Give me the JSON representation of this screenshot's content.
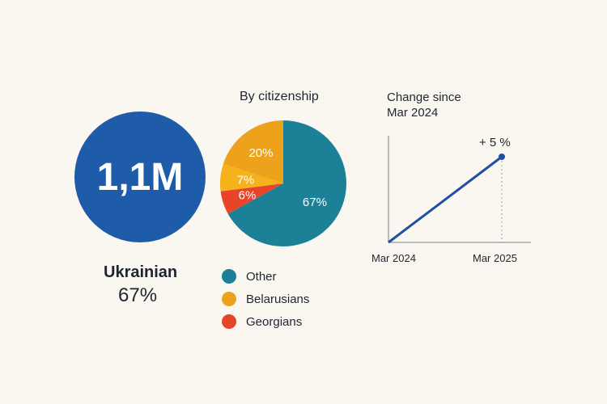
{
  "headline": {
    "value": "1,1M",
    "label": "Ukrainian",
    "share": "67%",
    "color": "#1e5ba8"
  },
  "pie_section": {
    "title": "By citizenship"
  },
  "change_section": {
    "title_line1": "Change since",
    "title_line2": "Mar 2024",
    "change_label": "+ 5 %",
    "x_start": "Mar 2024",
    "x_end": "Mar 2025"
  },
  "legend": [
    {
      "label": "Other",
      "color": "#1c8197"
    },
    {
      "label": "Belarusians",
      "color": "#eea21b"
    },
    {
      "label": "Georgians",
      "color": "#e8442a"
    }
  ],
  "chart_data": [
    {
      "type": "pie",
      "title": "By citizenship",
      "slices": [
        {
          "label": "67%",
          "value": 67,
          "color": "#1c8197"
        },
        {
          "label": "6%",
          "value": 6,
          "color": "#e8442a"
        },
        {
          "label": "7%",
          "value": 7,
          "color": "#f5b21b"
        },
        {
          "label": "20%",
          "value": 20,
          "color": "#eea21b"
        }
      ]
    },
    {
      "type": "line",
      "title": "Change since Mar 2024",
      "x": [
        "Mar 2024",
        "Mar 2025"
      ],
      "series": [
        {
          "values": [
            0,
            5
          ],
          "color": "#1e4fa0"
        }
      ],
      "annotation": "+ 5 %"
    }
  ]
}
